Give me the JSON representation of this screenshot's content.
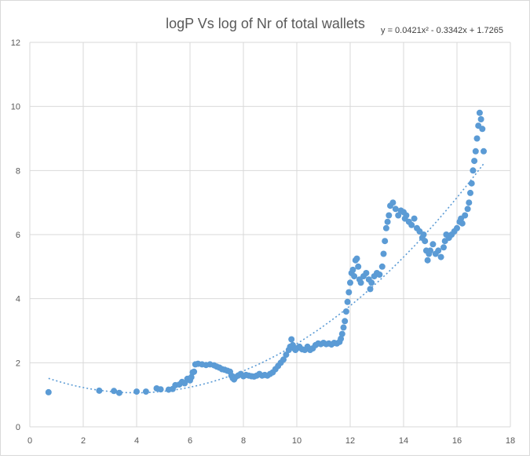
{
  "chart_data": {
    "type": "scatter",
    "title": "logP Vs log of Nr of total wallets",
    "xlabel": "",
    "ylabel": "",
    "xlim": [
      0,
      18
    ],
    "ylim": [
      0,
      12
    ],
    "x_ticks": [
      0,
      2,
      4,
      6,
      8,
      10,
      12,
      14,
      16,
      18
    ],
    "y_ticks": [
      0,
      2,
      4,
      6,
      8,
      10,
      12
    ],
    "grid": true,
    "legend": "none",
    "point_color": "#5b9bd5",
    "trendline": {
      "type": "polynomial",
      "order": 2,
      "equation": "y = 0.0421x² - 0.3342x + 1.7265",
      "coefficients": [
        0.0421,
        -0.3342,
        1.7265
      ],
      "x_range": [
        0.7,
        17.0
      ],
      "color": "#5b9bd5",
      "style": "dotted"
    },
    "series": [
      {
        "points": [
          [
            0.7,
            1.08
          ],
          [
            2.6,
            1.13
          ],
          [
            3.15,
            1.12
          ],
          [
            3.35,
            1.06
          ],
          [
            4.0,
            1.1
          ],
          [
            4.35,
            1.1
          ],
          [
            4.75,
            1.2
          ],
          [
            4.9,
            1.17
          ],
          [
            5.2,
            1.16
          ],
          [
            5.35,
            1.18
          ],
          [
            5.45,
            1.3
          ],
          [
            5.6,
            1.32
          ],
          [
            5.7,
            1.4
          ],
          [
            5.8,
            1.36
          ],
          [
            5.9,
            1.5
          ],
          [
            6.0,
            1.45
          ],
          [
            6.05,
            1.55
          ],
          [
            6.1,
            1.7
          ],
          [
            6.15,
            1.72
          ],
          [
            6.2,
            1.95
          ],
          [
            6.3,
            1.97
          ],
          [
            6.45,
            1.95
          ],
          [
            6.6,
            1.93
          ],
          [
            6.75,
            1.95
          ],
          [
            6.9,
            1.92
          ],
          [
            7.0,
            1.88
          ],
          [
            7.1,
            1.85
          ],
          [
            7.2,
            1.8
          ],
          [
            7.3,
            1.78
          ],
          [
            7.4,
            1.75
          ],
          [
            7.5,
            1.72
          ],
          [
            7.55,
            1.6
          ],
          [
            7.6,
            1.52
          ],
          [
            7.65,
            1.48
          ],
          [
            7.7,
            1.55
          ],
          [
            7.8,
            1.6
          ],
          [
            7.9,
            1.65
          ],
          [
            8.0,
            1.58
          ],
          [
            8.1,
            1.62
          ],
          [
            8.2,
            1.6
          ],
          [
            8.3,
            1.58
          ],
          [
            8.4,
            1.57
          ],
          [
            8.5,
            1.6
          ],
          [
            8.6,
            1.65
          ],
          [
            8.7,
            1.6
          ],
          [
            8.8,
            1.62
          ],
          [
            8.9,
            1.6
          ],
          [
            9.0,
            1.65
          ],
          [
            9.1,
            1.7
          ],
          [
            9.2,
            1.8
          ],
          [
            9.3,
            1.9
          ],
          [
            9.4,
            2.0
          ],
          [
            9.5,
            2.1
          ],
          [
            9.6,
            2.25
          ],
          [
            9.7,
            2.4
          ],
          [
            9.75,
            2.5
          ],
          [
            9.8,
            2.73
          ],
          [
            9.85,
            2.55
          ],
          [
            9.9,
            2.45
          ],
          [
            9.95,
            2.4
          ],
          [
            10.0,
            2.45
          ],
          [
            10.1,
            2.5
          ],
          [
            10.2,
            2.42
          ],
          [
            10.3,
            2.4
          ],
          [
            10.4,
            2.5
          ],
          [
            10.5,
            2.4
          ],
          [
            10.6,
            2.45
          ],
          [
            10.7,
            2.55
          ],
          [
            10.8,
            2.6
          ],
          [
            10.9,
            2.58
          ],
          [
            11.0,
            2.62
          ],
          [
            11.1,
            2.58
          ],
          [
            11.2,
            2.6
          ],
          [
            11.3,
            2.57
          ],
          [
            11.4,
            2.62
          ],
          [
            11.5,
            2.6
          ],
          [
            11.6,
            2.65
          ],
          [
            11.65,
            2.75
          ],
          [
            11.7,
            2.9
          ],
          [
            11.75,
            3.1
          ],
          [
            11.8,
            3.3
          ],
          [
            11.85,
            3.6
          ],
          [
            11.9,
            3.9
          ],
          [
            11.95,
            4.2
          ],
          [
            12.0,
            4.5
          ],
          [
            12.05,
            4.8
          ],
          [
            12.1,
            4.9
          ],
          [
            12.15,
            4.7
          ],
          [
            12.2,
            5.2
          ],
          [
            12.25,
            5.25
          ],
          [
            12.3,
            5.0
          ],
          [
            12.35,
            4.6
          ],
          [
            12.4,
            4.5
          ],
          [
            12.5,
            4.7
          ],
          [
            12.6,
            4.8
          ],
          [
            12.7,
            4.6
          ],
          [
            12.75,
            4.3
          ],
          [
            12.8,
            4.5
          ],
          [
            12.9,
            4.7
          ],
          [
            13.0,
            4.8
          ],
          [
            13.1,
            4.75
          ],
          [
            13.2,
            5.0
          ],
          [
            13.25,
            5.4
          ],
          [
            13.3,
            5.8
          ],
          [
            13.35,
            6.2
          ],
          [
            13.4,
            6.4
          ],
          [
            13.45,
            6.6
          ],
          [
            13.5,
            6.9
          ],
          [
            13.6,
            7.0
          ],
          [
            13.7,
            6.8
          ],
          [
            13.8,
            6.6
          ],
          [
            13.9,
            6.75
          ],
          [
            14.0,
            6.7
          ],
          [
            14.05,
            6.5
          ],
          [
            14.1,
            6.6
          ],
          [
            14.2,
            6.4
          ],
          [
            14.3,
            6.3
          ],
          [
            14.4,
            6.5
          ],
          [
            14.5,
            6.2
          ],
          [
            14.6,
            6.1
          ],
          [
            14.7,
            5.9
          ],
          [
            14.75,
            6.0
          ],
          [
            14.8,
            5.8
          ],
          [
            14.85,
            5.5
          ],
          [
            14.9,
            5.2
          ],
          [
            14.95,
            5.4
          ],
          [
            15.0,
            5.5
          ],
          [
            15.1,
            5.7
          ],
          [
            15.2,
            5.4
          ],
          [
            15.3,
            5.5
          ],
          [
            15.4,
            5.3
          ],
          [
            15.5,
            5.6
          ],
          [
            15.55,
            5.8
          ],
          [
            15.6,
            6.0
          ],
          [
            15.7,
            5.9
          ],
          [
            15.8,
            6.0
          ],
          [
            15.9,
            6.1
          ],
          [
            16.0,
            6.2
          ],
          [
            16.1,
            6.4
          ],
          [
            16.15,
            6.5
          ],
          [
            16.2,
            6.35
          ],
          [
            16.3,
            6.6
          ],
          [
            16.4,
            6.8
          ],
          [
            16.45,
            7.0
          ],
          [
            16.5,
            7.3
          ],
          [
            16.55,
            7.6
          ],
          [
            16.6,
            8.0
          ],
          [
            16.65,
            8.3
          ],
          [
            16.7,
            8.6
          ],
          [
            16.75,
            9.0
          ],
          [
            16.8,
            9.4
          ],
          [
            16.85,
            9.8
          ],
          [
            16.9,
            9.6
          ],
          [
            16.95,
            9.3
          ],
          [
            17.0,
            8.6
          ]
        ]
      }
    ]
  }
}
